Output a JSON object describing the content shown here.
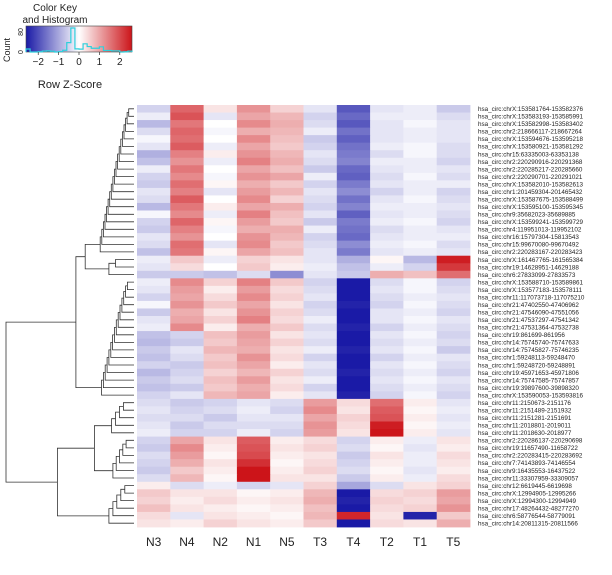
{
  "chart_data": {
    "type": "heatmap",
    "title": "",
    "value_label": "Row Z-Score",
    "key": {
      "title_line1": "Color Key",
      "title_line2": "and Histogram",
      "count_label": "Count",
      "count_ticks": [
        "0",
        "80"
      ],
      "z_ticks": [
        -2,
        -1,
        0,
        1,
        2
      ],
      "z_tick_labels": [
        "−2",
        "−1",
        "0",
        "1",
        "2"
      ],
      "z_range": [
        -2.6,
        2.6
      ],
      "low_color": "#1a1aa6",
      "mid_color": "#ffffff",
      "high_color": "#cc1419",
      "histogram_color": "#2fd0dc"
    },
    "columns": [
      "N3",
      "N4",
      "N2",
      "N1",
      "N5",
      "T3",
      "T4",
      "T2",
      "T1",
      "T5"
    ],
    "rows": [
      "hsa_circ:chrX:153581764-153582376",
      "hsa_circ:chrX:153583193-153585991",
      "hsa_circ:chrX:153582998-153583402",
      "hsa_circ:chr2:218666117-218667264",
      "hsa_circ:chrX:153594676-153595218",
      "hsa_circ:chrX:153580921-153581292",
      "hsa_circ:chr15:63335003-63353138",
      "hsa_circ:chr2:220290916-220291368",
      "hsa_circ:chr2:220285217-220285660",
      "hsa_circ:chr2:220290701-220291021",
      "hsa_circ:chrX:153582010-153582613",
      "hsa_circ:chr1:201459304-201465432",
      "hsa_circ:chrX:153587675-153588499",
      "hsa_circ:chrX:153595100-153595345",
      "hsa_circ:chr9:35682023-35689885",
      "hsa_circ:chrX:153599241-153599729",
      "hsa_circ:chr4:119951013-119952102",
      "hsa_circ:chr16:15797304-15813543",
      "hsa_circ:chr15:99670080-99670492",
      "hsa_circ:chr2:220283167-220283423",
      "hsa_circ:chrX:161467765-161565384",
      "hsa_circ:chr19:14628951-14629188",
      "hsa_circ:chr6:27833099-27833573",
      "hsa_circ:chrX:153588710-153589861",
      "hsa_circ:chrX:153577183-153578111",
      "hsa_circ:chr11:117073718-117075210",
      "hsa_circ:chr21:47402550-47406962",
      "hsa_circ:chr21:47546090-47551056",
      "hsa_circ:chr21:47537297-47541342",
      "hsa_circ:chr21:47531364-47532738",
      "hsa_circ:chr19:861699-861956",
      "hsa_circ:chr14:75745740-75747633",
      "hsa_circ:chr14:75745827-75746235",
      "hsa_circ:chr1:59248113-59248470",
      "hsa_circ:chr1:59248720-59248891",
      "hsa_circ:chr19:45971653-45971806",
      "hsa_circ:chr14:75747585-75747857",
      "hsa_circ:chr19:39897600-39898320",
      "hsa_circ:chrX:153590053-153593816",
      "hsa_circ:chr11:2150673-2151176",
      "hsa_circ:chr11:2151489-2151932",
      "hsa_circ:chr11:2151281-2151691",
      "hsa_circ:chr11:2018801-2019011",
      "hsa_circ:chr11:2018630-2018977",
      "hsa_circ:chr2:220286137-220290698",
      "hsa_circ:chr19:11657490-11658722",
      "hsa_circ:chr2:220283415-220283692",
      "hsa_circ:chr7:74143893-74146554",
      "hsa_circ:chr9:16435553-16437522",
      "hsa_circ:chr11:33307959-33309057",
      "hsa_circ:chr12:6619445-6619698",
      "hsa_circ:chrX:12994905-12995266",
      "hsa_circ:chrX:12994300-12994949",
      "hsa_circ:chr17:48264432-48277270",
      "hsa_circ:chr6:58776544-58779091",
      "hsa_circ:chr14:20811315-20811566"
    ],
    "values": [
      [
        -0.5,
        1.7,
        0.3,
        1.2,
        0.5,
        -0.3,
        -1.9,
        -0.3,
        -0.2,
        -0.6
      ],
      [
        -0.2,
        1.9,
        -0.3,
        1.0,
        0.8,
        -0.5,
        -1.7,
        -0.2,
        -0.2,
        -0.4
      ],
      [
        -0.8,
        1.5,
        0.0,
        1.3,
        0.9,
        -0.4,
        -1.9,
        -0.3,
        -0.1,
        -0.3
      ],
      [
        -0.4,
        1.7,
        -0.1,
        0.9,
        0.8,
        -0.2,
        -1.6,
        -0.3,
        -0.2,
        -0.3
      ],
      [
        -0.1,
        1.6,
        0.0,
        1.3,
        0.7,
        -0.6,
        -1.8,
        -0.3,
        -0.2,
        -0.3
      ],
      [
        -0.3,
        1.8,
        -0.2,
        1.0,
        0.6,
        -0.5,
        -1.6,
        -0.2,
        -0.1,
        -0.4
      ],
      [
        -0.9,
        1.4,
        0.2,
        1.2,
        0.8,
        -0.3,
        -1.5,
        -0.4,
        -0.1,
        -0.4
      ],
      [
        -0.7,
        1.2,
        -0.2,
        1.4,
        0.9,
        -0.4,
        -1.4,
        -0.2,
        -0.2,
        -0.5
      ],
      [
        -0.2,
        1.5,
        0.0,
        1.0,
        0.7,
        -0.6,
        -1.7,
        -0.3,
        -0.2,
        -0.3
      ],
      [
        -0.5,
        1.3,
        -0.1,
        1.2,
        1.0,
        -0.2,
        -1.8,
        -0.4,
        -0.1,
        -0.4
      ],
      [
        -0.6,
        1.6,
        0.1,
        0.9,
        0.6,
        -0.5,
        -1.5,
        -0.3,
        -0.2,
        -0.2
      ],
      [
        -0.3,
        1.4,
        -0.3,
        1.1,
        0.8,
        -0.3,
        -1.3,
        -0.5,
        -0.2,
        -0.5
      ],
      [
        -0.4,
        1.8,
        0.0,
        1.3,
        0.5,
        -0.4,
        -1.6,
        -0.3,
        -0.1,
        -0.4
      ],
      [
        -0.8,
        1.5,
        0.2,
        1.0,
        0.9,
        -0.5,
        -1.4,
        -0.2,
        -0.2,
        -0.3
      ],
      [
        -0.1,
        1.3,
        -0.2,
        1.4,
        0.7,
        -0.3,
        -1.8,
        -0.3,
        -0.2,
        -0.4
      ],
      [
        -0.5,
        1.7,
        0.1,
        1.1,
        0.6,
        -0.6,
        -1.5,
        -0.2,
        -0.1,
        -0.5
      ],
      [
        -0.6,
        1.4,
        -0.1,
        0.9,
        0.9,
        -0.2,
        -1.6,
        -0.4,
        -0.2,
        -0.3
      ],
      [
        -0.3,
        1.2,
        0.0,
        1.2,
        0.8,
        -0.5,
        -1.7,
        -0.3,
        -0.2,
        -0.2
      ],
      [
        -0.4,
        1.6,
        -0.3,
        1.3,
        0.6,
        -0.4,
        -1.3,
        -0.2,
        -0.1,
        -0.4
      ],
      [
        -0.7,
        1.5,
        0.1,
        1.0,
        0.7,
        -0.3,
        -1.5,
        -0.3,
        -0.2,
        -0.3
      ],
      [
        -0.2,
        0.6,
        -0.2,
        0.5,
        0.3,
        -0.3,
        -0.9,
        0.1,
        -0.8,
        2.5
      ],
      [
        -0.3,
        0.4,
        0.0,
        0.6,
        0.2,
        -0.2,
        -0.7,
        -0.2,
        -0.5,
        2.2
      ],
      [
        -0.6,
        -0.6,
        -0.7,
        -0.4,
        -1.3,
        -0.3,
        -0.6,
        0.9,
        0.7,
        1.6
      ],
      [
        -0.2,
        1.3,
        0.5,
        1.4,
        0.6,
        -0.5,
        -2.6,
        -0.4,
        -0.1,
        -0.5
      ],
      [
        -0.3,
        1.1,
        0.2,
        1.1,
        0.4,
        -0.4,
        -2.6,
        -0.3,
        -0.1,
        -0.4
      ],
      [
        -0.5,
        1.0,
        0.4,
        1.3,
        0.5,
        -0.3,
        -2.7,
        -0.4,
        -0.2,
        -0.3
      ],
      [
        -0.1,
        1.2,
        0.6,
        1.0,
        0.3,
        -0.5,
        -2.5,
        -0.5,
        -0.1,
        -0.4
      ],
      [
        -0.6,
        0.9,
        0.3,
        1.2,
        0.5,
        -0.4,
        -2.6,
        -0.3,
        -0.2,
        -0.5
      ],
      [
        -0.3,
        1.0,
        0.5,
        1.4,
        0.4,
        -0.2,
        -2.7,
        -0.3,
        -0.1,
        -0.3
      ],
      [
        -0.2,
        1.3,
        0.2,
        0.9,
        0.6,
        -0.4,
        -2.5,
        -0.5,
        -0.2,
        -0.4
      ],
      [
        -0.7,
        -0.5,
        0.7,
        1.1,
        0.3,
        -0.3,
        -2.6,
        -0.3,
        -0.1,
        -0.5
      ],
      [
        -0.8,
        -0.6,
        0.6,
        1.0,
        0.5,
        -0.4,
        -2.7,
        -0.4,
        -0.2,
        -0.4
      ],
      [
        -0.6,
        -0.3,
        0.8,
        0.9,
        0.3,
        -0.2,
        -2.5,
        -0.3,
        -0.1,
        -0.6
      ],
      [
        -0.7,
        -0.4,
        0.6,
        1.2,
        0.4,
        -0.5,
        -2.6,
        -0.5,
        -0.2,
        -0.3
      ],
      [
        -0.5,
        -0.6,
        0.7,
        1.0,
        0.2,
        -0.3,
        -2.7,
        -0.3,
        -0.1,
        -0.4
      ],
      [
        -0.8,
        -0.5,
        0.5,
        0.8,
        0.5,
        -0.4,
        -2.5,
        -0.4,
        -0.2,
        -0.5
      ],
      [
        -0.6,
        -0.4,
        0.7,
        1.1,
        0.3,
        -0.2,
        -2.6,
        -0.3,
        -0.1,
        -0.3
      ],
      [
        -0.7,
        -0.6,
        0.6,
        0.9,
        0.4,
        -0.5,
        -2.7,
        -0.4,
        -0.2,
        -0.4
      ],
      [
        -0.5,
        -0.3,
        0.8,
        1.0,
        0.2,
        -0.3,
        -2.5,
        -0.5,
        -0.1,
        -0.5
      ],
      [
        -0.4,
        -0.6,
        -0.5,
        -0.3,
        -0.4,
        1.1,
        0.4,
        1.6,
        0.2,
        -0.3
      ],
      [
        -0.3,
        -0.5,
        -0.4,
        -0.2,
        -0.5,
        1.3,
        0.3,
        1.8,
        0.1,
        -0.2
      ],
      [
        -0.4,
        -0.4,
        -0.6,
        -0.3,
        -0.3,
        1.0,
        0.5,
        1.9,
        0.2,
        -0.3
      ],
      [
        -0.3,
        -0.6,
        -0.4,
        -0.4,
        -0.4,
        1.2,
        0.4,
        2.5,
        0.1,
        -0.2
      ],
      [
        -0.2,
        -0.5,
        -0.5,
        -0.2,
        -0.5,
        1.1,
        0.3,
        2.6,
        0.2,
        -0.3
      ],
      [
        -0.5,
        1.0,
        0.3,
        1.8,
        0.2,
        0.4,
        -0.5,
        0.2,
        -0.2,
        0.3
      ],
      [
        -0.6,
        1.3,
        0.2,
        1.9,
        0.3,
        0.5,
        -0.4,
        0.1,
        -0.3,
        0.2
      ],
      [
        -0.4,
        1.1,
        0.1,
        2.0,
        0.2,
        0.3,
        -0.6,
        0.3,
        -0.2,
        0.4
      ],
      [
        -0.5,
        0.9,
        0.3,
        2.3,
        0.1,
        0.4,
        -0.5,
        0.2,
        -0.2,
        0.3
      ],
      [
        -0.6,
        0.6,
        0.2,
        2.6,
        0.2,
        0.5,
        -0.4,
        0.1,
        -0.3,
        0.2
      ],
      [
        -0.4,
        0.8,
        0.1,
        2.7,
        0.3,
        0.3,
        -0.6,
        0.2,
        -0.2,
        0.4
      ],
      [
        0.2,
        -0.4,
        -0.2,
        -0.5,
        -0.3,
        0.5,
        -1.0,
        -0.4,
        0.3,
        0.5
      ],
      [
        0.6,
        0.3,
        0.3,
        0.1,
        0.2,
        0.8,
        -2.6,
        0.4,
        0.5,
        1.1
      ],
      [
        0.5,
        0.2,
        0.4,
        0.2,
        0.3,
        0.9,
        -2.5,
        0.5,
        0.4,
        1.0
      ],
      [
        0.7,
        0.3,
        0.2,
        0.1,
        0.2,
        0.7,
        -2.7,
        0.4,
        0.5,
        1.2
      ],
      [
        0.4,
        -0.3,
        0.3,
        0.2,
        0.1,
        0.8,
        2.4,
        0.3,
        -2.5,
        0.6
      ],
      [
        0.3,
        0.2,
        0.5,
        0.3,
        0.2,
        0.6,
        -2.6,
        0.4,
        0.3,
        0.9
      ]
    ]
  }
}
